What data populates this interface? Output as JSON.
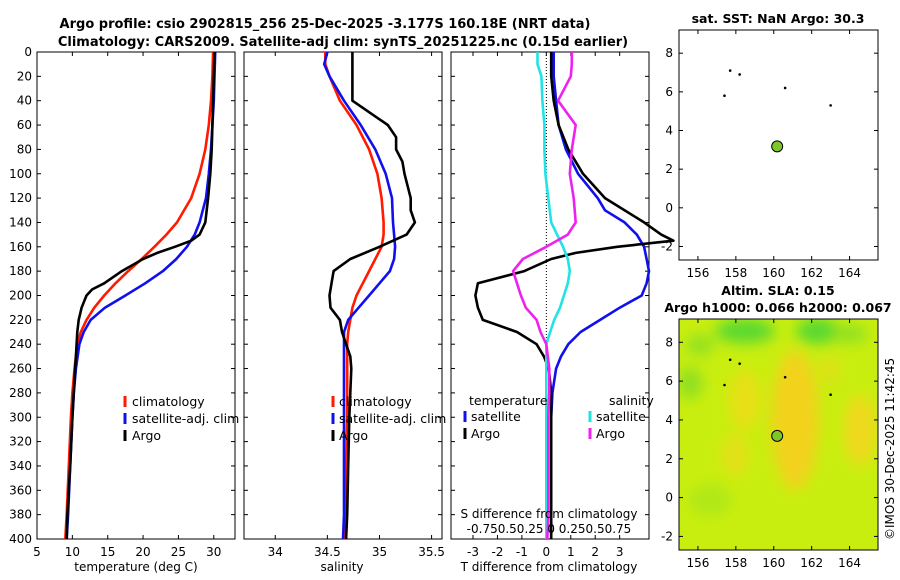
{
  "figure": {
    "title_line1": "Argo profile: csio 2902815_256 25-Dec-2025 -3.177S 160.18E (NRT data)",
    "title_line2": "Climatology: CARS2009. Satellite-adj clim: synTS_20251225.nc (0.15d earlier)",
    "timestamp": "©IMOS 30-Dec-2025 11:42:45"
  },
  "colors": {
    "climatology": "#ff1a00",
    "satellite": "#1010ee",
    "argo": "#000000",
    "temp_satellite": "#1010ee",
    "sal_satellite": "#22e3e3",
    "sal_argo": "#ee22ee",
    "float_marker": "#7ec62a",
    "sla_field": "#c8ee10"
  },
  "legend": {
    "climatology": "climatology",
    "satellite_adj": "satellite-adj. clim",
    "argo": "Argo",
    "temperature_header": "temperature",
    "salinity_header": "salinity",
    "satellite": "satellite",
    "argo_diff": "Argo"
  },
  "chart_data": [
    {
      "type": "line",
      "name": "temperature-profile",
      "xlabel": "temperature (deg C)",
      "ylabel": "",
      "xlim": [
        5,
        33
      ],
      "ylim": [
        400,
        0
      ],
      "xticks": [
        5,
        10,
        15,
        20,
        25,
        30
      ],
      "yticks": [
        0,
        20,
        40,
        60,
        80,
        100,
        120,
        140,
        160,
        180,
        200,
        220,
        240,
        260,
        280,
        300,
        320,
        340,
        360,
        380,
        400
      ],
      "series": [
        {
          "name": "climatology",
          "depth": [
            0,
            20,
            40,
            60,
            80,
            100,
            120,
            140,
            150,
            160,
            170,
            180,
            190,
            200,
            210,
            220,
            230,
            240,
            260,
            280,
            300,
            340,
            380,
            400
          ],
          "values": [
            29.9,
            29.8,
            29.6,
            29.3,
            28.8,
            28.0,
            26.8,
            24.8,
            23.3,
            21.6,
            19.8,
            17.9,
            16.1,
            14.5,
            13.1,
            12.0,
            11.2,
            10.7,
            10.3,
            10.0,
            9.8,
            9.5,
            9.2,
            9.0
          ]
        },
        {
          "name": "satellite-adj. clim",
          "depth": [
            0,
            20,
            40,
            60,
            80,
            100,
            120,
            140,
            150,
            160,
            170,
            180,
            190,
            200,
            210,
            220,
            230,
            240,
            260,
            280,
            300,
            340,
            380,
            400
          ],
          "values": [
            30.2,
            30.1,
            30.0,
            29.8,
            29.6,
            29.3,
            28.9,
            28.0,
            27.3,
            26.2,
            24.7,
            22.8,
            20.3,
            17.5,
            14.6,
            12.6,
            11.6,
            11.0,
            10.5,
            10.2,
            10.0,
            9.7,
            9.4,
            9.2
          ]
        },
        {
          "name": "Argo",
          "depth": [
            0,
            20,
            40,
            60,
            80,
            100,
            120,
            140,
            150,
            155,
            160,
            165,
            170,
            180,
            190,
            195,
            200,
            210,
            220,
            230,
            240,
            260,
            280,
            300,
            340,
            380,
            400
          ],
          "values": [
            30.1,
            30.0,
            29.9,
            29.8,
            29.7,
            29.5,
            29.2,
            28.8,
            28.0,
            26.8,
            24.5,
            22.0,
            20.0,
            17.0,
            14.5,
            12.8,
            12.0,
            11.3,
            10.9,
            10.7,
            10.6,
            10.4,
            10.2,
            10.0,
            9.7,
            9.3,
            9.2
          ]
        }
      ]
    },
    {
      "type": "line",
      "name": "salinity-profile",
      "xlabel": "salinity",
      "xlim": [
        33.7,
        35.6
      ],
      "ylim": [
        400,
        0
      ],
      "xticks": [
        34,
        34.5,
        35,
        35.5
      ],
      "yticks": [
        0,
        20,
        40,
        60,
        80,
        100,
        120,
        140,
        160,
        180,
        200,
        220,
        240,
        260,
        280,
        300,
        320,
        340,
        360,
        380,
        400
      ],
      "series": [
        {
          "name": "climatology",
          "depth": [
            0,
            10,
            20,
            40,
            60,
            80,
            100,
            120,
            140,
            150,
            160,
            170,
            180,
            190,
            200,
            210,
            220,
            230,
            240,
            260,
            280,
            300,
            340,
            380,
            400
          ],
          "values": [
            34.48,
            34.48,
            34.52,
            34.62,
            34.78,
            34.9,
            34.98,
            35.02,
            35.04,
            35.04,
            35.02,
            34.96,
            34.9,
            34.84,
            34.78,
            34.74,
            34.72,
            34.7,
            34.69,
            34.69,
            34.69,
            34.69,
            34.68,
            34.67,
            34.67
          ]
        },
        {
          "name": "satellite-adj. clim",
          "depth": [
            0,
            10,
            20,
            40,
            60,
            80,
            100,
            120,
            140,
            150,
            160,
            170,
            180,
            190,
            200,
            210,
            220,
            230,
            240,
            260,
            280,
            300,
            340,
            380,
            400
          ],
          "values": [
            34.5,
            34.47,
            34.52,
            34.66,
            34.82,
            34.96,
            35.06,
            35.12,
            35.13,
            35.14,
            35.15,
            35.14,
            35.1,
            35.0,
            34.9,
            34.8,
            34.7,
            34.66,
            34.66,
            34.66,
            34.66,
            34.66,
            34.66,
            34.66,
            34.65
          ]
        },
        {
          "name": "Argo",
          "depth": [
            0,
            20,
            40,
            60,
            70,
            80,
            90,
            100,
            120,
            130,
            140,
            150,
            160,
            170,
            180,
            190,
            200,
            210,
            220,
            230,
            240,
            250,
            260,
            280,
            300,
            340,
            380,
            400
          ],
          "values": [
            34.74,
            34.74,
            34.74,
            35.08,
            35.16,
            35.16,
            35.22,
            35.24,
            35.3,
            35.3,
            35.34,
            35.26,
            35.0,
            34.72,
            34.56,
            34.54,
            34.52,
            34.53,
            34.62,
            34.64,
            34.68,
            34.72,
            34.73,
            34.72,
            34.71,
            34.7,
            34.69,
            34.68
          ]
        }
      ]
    },
    {
      "type": "line",
      "name": "difference-profile",
      "xlabel": "T difference from climatology",
      "xlabel2": "S difference from climatology",
      "x2ticks_text": "-0.750.50.25 0 0.250.50.75",
      "xlim": [
        -3.9,
        4.2
      ],
      "ylim": [
        400,
        0
      ],
      "xticks": [
        -3,
        -2,
        -1,
        0,
        1,
        2,
        3
      ],
      "yticks": [
        0,
        20,
        40,
        60,
        80,
        100,
        120,
        140,
        160,
        180,
        200,
        220,
        240,
        260,
        280,
        300,
        320,
        340,
        360,
        380,
        400
      ],
      "series": [
        {
          "name": "temperature satellite",
          "depth": [
            0,
            20,
            40,
            60,
            80,
            100,
            120,
            130,
            140,
            150,
            160,
            170,
            180,
            190,
            200,
            210,
            220,
            230,
            240,
            250,
            260,
            280,
            300,
            340,
            380,
            400
          ],
          "values": [
            0.3,
            0.3,
            0.4,
            0.5,
            0.8,
            1.3,
            2.1,
            2.4,
            3.2,
            3.7,
            4.0,
            4.1,
            4.2,
            4.1,
            3.9,
            3.0,
            2.2,
            1.4,
            0.9,
            0.6,
            0.4,
            0.25,
            0.2,
            0.2,
            0.2,
            0.2
          ]
        },
        {
          "name": "temperature Argo",
          "depth": [
            0,
            20,
            40,
            60,
            80,
            100,
            120,
            140,
            150,
            155,
            160,
            165,
            170,
            180,
            190,
            200,
            210,
            220,
            230,
            240,
            250,
            260,
            280,
            300,
            340,
            380,
            400
          ],
          "values": [
            0.2,
            0.2,
            0.3,
            0.5,
            0.9,
            1.5,
            2.4,
            4.0,
            4.7,
            5.2,
            2.9,
            1.2,
            0.2,
            -0.9,
            -2.8,
            -2.9,
            -2.8,
            -2.6,
            -1.2,
            -0.4,
            -0.1,
            0.1,
            0.2,
            0.2,
            0.2,
            0.2,
            0.2
          ]
        },
        {
          "name": "salinity satellite",
          "depth": [
            0,
            10,
            20,
            40,
            60,
            80,
            100,
            120,
            140,
            150,
            160,
            170,
            180,
            190,
            200,
            210,
            220,
            230,
            240,
            260,
            280,
            300,
            340,
            380,
            400
          ],
          "values": [
            -0.09,
            -0.09,
            -0.05,
            -0.04,
            -0.02,
            -0.02,
            -0.01,
            0.02,
            0.05,
            0.11,
            0.17,
            0.22,
            0.24,
            0.22,
            0.18,
            0.14,
            0.08,
            0.04,
            0.0,
            0.0,
            0.0,
            0.0,
            0.0,
            0.0,
            0.0
          ]
        },
        {
          "name": "salinity Argo",
          "depth": [
            0,
            10,
            20,
            40,
            60,
            80,
            100,
            120,
            140,
            150,
            160,
            170,
            180,
            190,
            200,
            210,
            220,
            230,
            240,
            260,
            280,
            300,
            340,
            380,
            400
          ],
          "values": [
            0.26,
            0.26,
            0.25,
            0.12,
            0.3,
            0.26,
            0.24,
            0.28,
            0.3,
            0.22,
            0.0,
            -0.24,
            -0.34,
            -0.3,
            -0.26,
            -0.21,
            -0.1,
            -0.06,
            0.0,
            0.03,
            0.03,
            0.02,
            0.02,
            0.02,
            0.01
          ]
        }
      ]
    },
    {
      "type": "scatter",
      "name": "sst-map",
      "title": "sat. SST: NaN Argo: 30.3",
      "xlim": [
        155,
        165.5
      ],
      "ylim": [
        -2.7,
        9.2
      ],
      "xticks": [
        156,
        158,
        160,
        162,
        164
      ],
      "yticks": [
        -2,
        0,
        2,
        4,
        6,
        8
      ],
      "float_position": {
        "x": 160.18,
        "y": 3.18
      },
      "islands": [
        {
          "x": 158.2,
          "y": 6.9
        },
        {
          "x": 157.7,
          "y": 7.1
        },
        {
          "x": 157.4,
          "y": 5.8
        },
        {
          "x": 160.6,
          "y": 6.2
        },
        {
          "x": 163.0,
          "y": 5.3
        }
      ]
    },
    {
      "type": "heatmap",
      "name": "sla-map",
      "title_line1": "Altim. SLA: 0.15",
      "title_line2": "Argo h1000: 0.066 h2000: 0.067",
      "xlim": [
        155,
        165.5
      ],
      "ylim": [
        -2.7,
        9.2
      ],
      "xticks": [
        156,
        158,
        160,
        162,
        164
      ],
      "yticks": [
        -2,
        0,
        2,
        4,
        6,
        8
      ],
      "float_position": {
        "x": 160.18,
        "y": 3.18
      },
      "islands": [
        {
          "x": 158.2,
          "y": 6.9
        },
        {
          "x": 157.7,
          "y": 7.1
        },
        {
          "x": 157.4,
          "y": 5.8
        },
        {
          "x": 160.6,
          "y": 6.2
        },
        {
          "x": 163.0,
          "y": 5.3
        }
      ]
    }
  ]
}
